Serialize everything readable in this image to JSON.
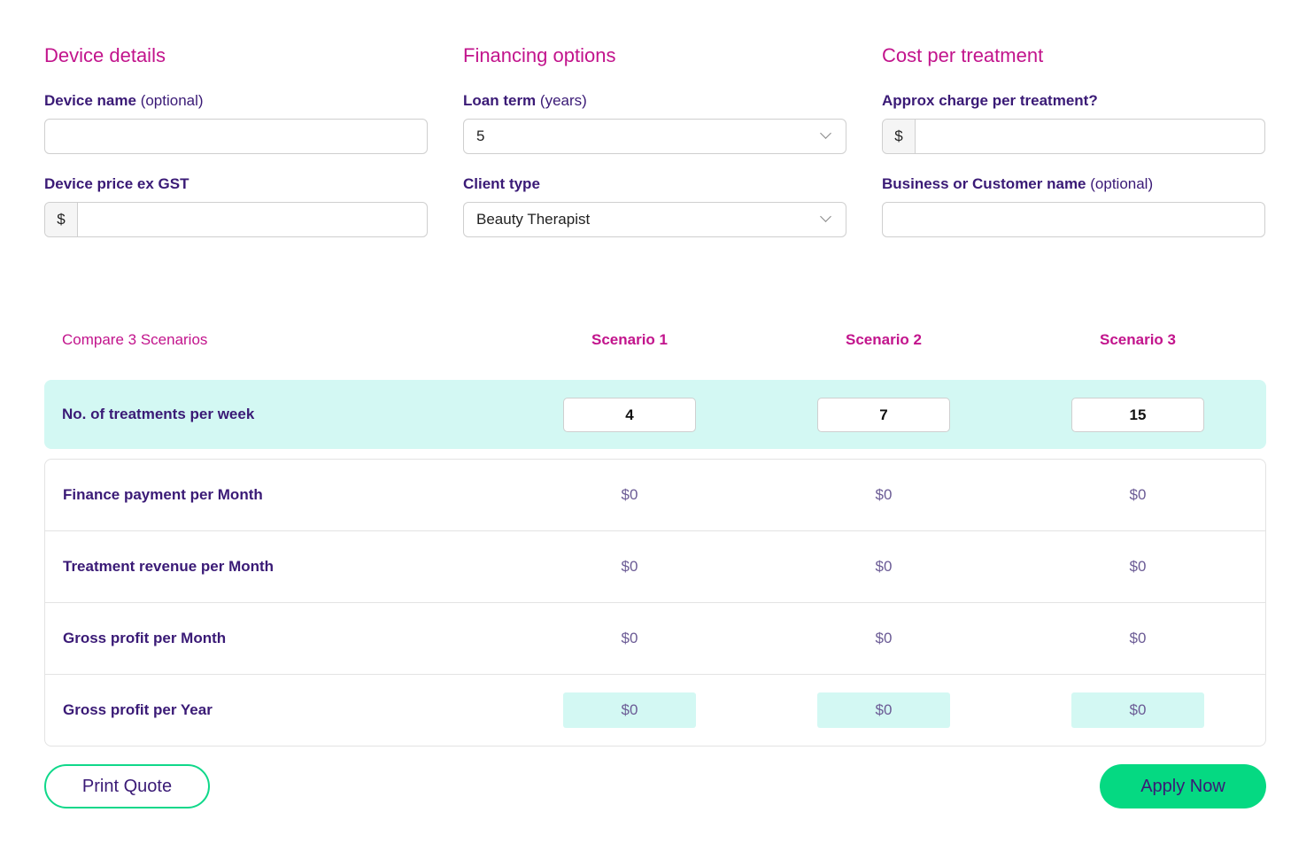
{
  "sections": [
    {
      "title": "Device details",
      "fields": [
        {
          "label": "Device name",
          "hint": "(optional)"
        },
        {
          "label": "Device price ex GST",
          "prefix": "$"
        }
      ]
    },
    {
      "title": "Financing options",
      "fields": [
        {
          "label": "Loan term",
          "hint": "(years)",
          "value": "5"
        },
        {
          "label": "Client type",
          "value": "Beauty Therapist"
        }
      ]
    },
    {
      "title": "Cost per treatment",
      "fields": [
        {
          "label": "Approx charge per treatment?",
          "prefix": "$"
        },
        {
          "label": "Business or Customer name",
          "hint": "(optional)"
        }
      ]
    }
  ],
  "compare": {
    "title": "Compare 3 Scenarios",
    "scenarios": [
      "Scenario 1",
      "Scenario 2",
      "Scenario 3"
    ],
    "treatments": {
      "label": "No. of treatments per week",
      "values": [
        4,
        7,
        15
      ]
    },
    "rows": [
      {
        "label": "Finance payment per Month",
        "values": [
          "$0",
          "$0",
          "$0"
        ]
      },
      {
        "label": "Treatment revenue per Month",
        "values": [
          "$0",
          "$0",
          "$0"
        ]
      },
      {
        "label": "Gross profit per Month",
        "values": [
          "$0",
          "$0",
          "$0"
        ]
      },
      {
        "label": "Gross profit per Year",
        "values": [
          "$0",
          "$0",
          "$0"
        ]
      }
    ]
  },
  "buttons": {
    "print": "Print Quote",
    "apply": "Apply Now"
  }
}
